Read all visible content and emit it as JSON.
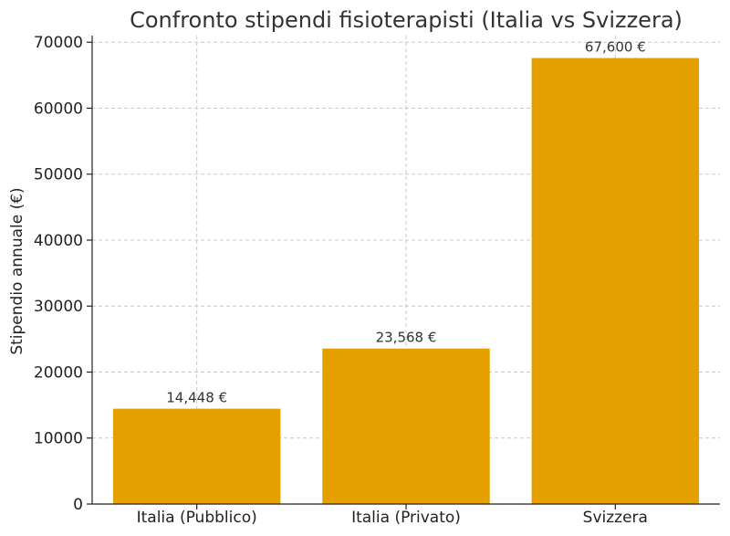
{
  "chart_data": {
    "type": "bar",
    "title": "Confronto stipendi fisioterapisti (Italia vs Svizzera)",
    "xlabel": "",
    "ylabel": "Stipendio annuale (€)",
    "categories": [
      "Italia (Pubblico)",
      "Italia (Privato)",
      "Svizzera"
    ],
    "values": [
      14448,
      23568,
      67600
    ],
    "value_labels": [
      "14,448 €",
      "23,568 €",
      "67,600 €"
    ],
    "ylim": [
      0,
      71000
    ],
    "yticks": [
      0,
      10000,
      20000,
      30000,
      40000,
      50000,
      60000,
      70000
    ],
    "ytick_labels": [
      "0",
      "10000",
      "20000",
      "30000",
      "40000",
      "50000",
      "60000",
      "70000"
    ],
    "grid": true,
    "bar_color": "#E5A000"
  }
}
